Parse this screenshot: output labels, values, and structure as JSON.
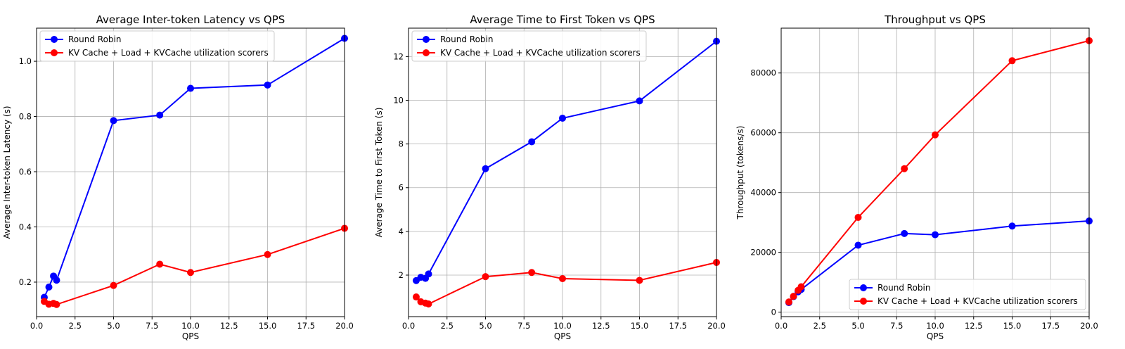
{
  "figure": {
    "background": "#ffffff"
  },
  "chart_data": [
    {
      "type": "line",
      "title": "Average Inter-token Latency vs QPS",
      "xlabel": "QPS",
      "ylabel": "Average Inter-token Latency (s)",
      "xlim": [
        0,
        20
      ],
      "ylim": [
        0.075,
        1.12
      ],
      "xticks": [
        0,
        2.5,
        5,
        7.5,
        10,
        12.5,
        15,
        17.5,
        20
      ],
      "xtick_labels": [
        "0.0",
        "2.5",
        "5.0",
        "7.5",
        "10.0",
        "12.5",
        "15.0",
        "17.5",
        "20.0"
      ],
      "yticks": [
        0.2,
        0.4,
        0.6,
        0.8,
        1.0
      ],
      "ytick_labels": [
        "0.2",
        "0.4",
        "0.6",
        "0.8",
        "1.0"
      ],
      "grid": true,
      "legend_position": "top-left",
      "series": [
        {
          "name": "Round Robin",
          "color": "#0000ff",
          "x": [
            0.5,
            0.8,
            1.1,
            1.3,
            5,
            8,
            10,
            15,
            20
          ],
          "y": [
            0.145,
            0.182,
            0.222,
            0.207,
            0.785,
            0.805,
            0.902,
            0.914,
            1.083
          ]
        },
        {
          "name": "KV Cache + Load + KVCache utilization scorers",
          "color": "#ff0000",
          "x": [
            0.5,
            0.8,
            1.1,
            1.3,
            5,
            8,
            10,
            15,
            20
          ],
          "y": [
            0.13,
            0.12,
            0.123,
            0.119,
            0.188,
            0.265,
            0.235,
            0.3,
            0.395
          ]
        }
      ]
    },
    {
      "type": "line",
      "title": "Average Time to First Token vs QPS",
      "xlabel": "QPS",
      "ylabel": "Average Time to First Token (s)",
      "xlim": [
        0,
        20
      ],
      "ylim": [
        0.1,
        13.3
      ],
      "xticks": [
        0,
        2.5,
        5,
        7.5,
        10,
        12.5,
        15,
        17.5,
        20
      ],
      "xtick_labels": [
        "0.0",
        "2.5",
        "5.0",
        "7.5",
        "10.0",
        "12.5",
        "15.0",
        "17.5",
        "20.0"
      ],
      "yticks": [
        2,
        4,
        6,
        8,
        10,
        12
      ],
      "ytick_labels": [
        "2",
        "4",
        "6",
        "8",
        "10",
        "12"
      ],
      "grid": true,
      "legend_position": "top-left",
      "series": [
        {
          "name": "Round Robin",
          "color": "#0000ff",
          "x": [
            0.5,
            0.8,
            1.1,
            1.3,
            5,
            8,
            10,
            15,
            20
          ],
          "y": [
            1.75,
            1.9,
            1.85,
            2.05,
            6.87,
            8.1,
            9.18,
            9.97,
            12.7
          ]
        },
        {
          "name": "KV Cache + Load + KVCache utilization scorers",
          "color": "#ff0000",
          "x": [
            0.5,
            0.8,
            1.1,
            1.3,
            5,
            8,
            10,
            15,
            20
          ],
          "y": [
            1.0,
            0.78,
            0.72,
            0.68,
            1.93,
            2.12,
            1.84,
            1.76,
            2.58
          ]
        }
      ]
    },
    {
      "type": "line",
      "title": "Throughput vs QPS",
      "xlabel": "QPS",
      "ylabel": "Throughput (tokens/s)",
      "xlim": [
        0,
        20
      ],
      "ylim": [
        -1500,
        95000
      ],
      "xticks": [
        0,
        2.5,
        5,
        7.5,
        10,
        12.5,
        15,
        17.5,
        20
      ],
      "xtick_labels": [
        "0.0",
        "2.5",
        "5.0",
        "7.5",
        "10.0",
        "12.5",
        "15.0",
        "17.5",
        "20.0"
      ],
      "yticks": [
        0,
        20000,
        40000,
        60000,
        80000
      ],
      "ytick_labels": [
        "0",
        "20000",
        "40000",
        "60000",
        "80000"
      ],
      "grid": true,
      "legend_position": "bottom-right",
      "series": [
        {
          "name": "Round Robin",
          "color": "#0000ff",
          "x": [
            0.5,
            0.8,
            1.1,
            1.3,
            5,
            8,
            10,
            15,
            20
          ],
          "y": [
            3200,
            5200,
            6800,
            7600,
            22400,
            26300,
            25900,
            28800,
            30500
          ]
        },
        {
          "name": "KV Cache + Load + KVCache utilization scorers",
          "color": "#ff0000",
          "x": [
            0.5,
            0.8,
            1.1,
            1.3,
            5,
            8,
            10,
            15,
            20
          ],
          "y": [
            3400,
            5300,
            7300,
            8500,
            31700,
            48000,
            59300,
            84100,
            90800
          ]
        }
      ]
    }
  ]
}
